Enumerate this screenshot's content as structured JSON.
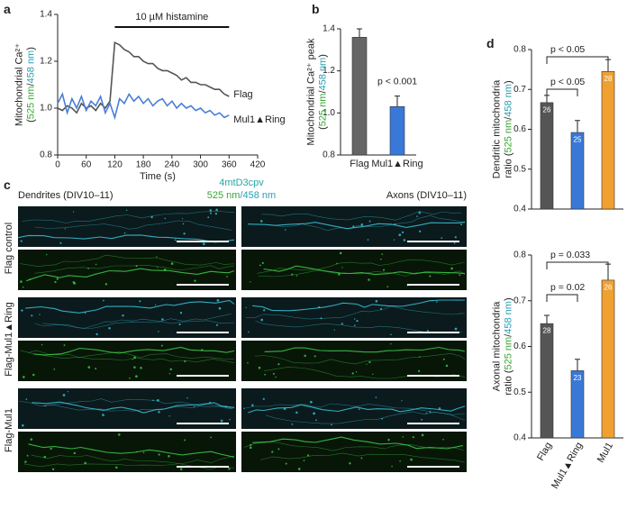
{
  "panel_labels": [
    "a",
    "b",
    "c",
    "d"
  ],
  "chart_data": [
    {
      "type": "line",
      "x_label": "Time (s)",
      "y_label": [
        [
          {
            "text": "Mitochondrial Ca²⁺",
            "color": "#222222"
          }
        ],
        [
          {
            "text": "(",
            "color": "#222222"
          },
          {
            "text": "525 nm",
            "color": "#3aa635"
          },
          {
            "text": "/",
            "color": "#222222"
          },
          {
            "text": "458 nm",
            "color": "#2a9fb5"
          },
          {
            "text": ")",
            "color": "#222222"
          }
        ]
      ],
      "stimulus": {
        "label": "10 µM histamine",
        "start": 120,
        "end": 360
      },
      "x": [
        0,
        10,
        20,
        30,
        40,
        50,
        60,
        70,
        80,
        90,
        100,
        110,
        120,
        130,
        140,
        150,
        160,
        170,
        180,
        190,
        200,
        210,
        220,
        230,
        240,
        250,
        260,
        270,
        280,
        290,
        300,
        310,
        320,
        330,
        340,
        350,
        360
      ],
      "series": [
        {
          "name": "Flag",
          "color": "#555555",
          "values": [
            1.0,
            0.99,
            1.01,
            1.0,
            0.98,
            1.02,
            1.0,
            1.01,
            0.99,
            1.02,
            1.0,
            1.03,
            1.28,
            1.27,
            1.25,
            1.24,
            1.22,
            1.22,
            1.2,
            1.19,
            1.19,
            1.17,
            1.16,
            1.16,
            1.15,
            1.14,
            1.12,
            1.13,
            1.11,
            1.11,
            1.1,
            1.1,
            1.09,
            1.08,
            1.08,
            1.06,
            1.05
          ]
        },
        {
          "name": "Mul1▲Ring",
          "color": "#4a7fd6",
          "values": [
            1.02,
            1.06,
            0.98,
            1.04,
            1.0,
            1.05,
            0.99,
            1.03,
            1.01,
            1.05,
            0.98,
            1.02,
            0.96,
            1.04,
            1.02,
            1.06,
            1.03,
            1.05,
            1.02,
            1.04,
            1.01,
            1.03,
            1.04,
            1.01,
            1.03,
            1.0,
            1.02,
            1.0,
            1.01,
            0.99,
            1.0,
            0.98,
            0.99,
            0.97,
            0.98,
            0.96,
            0.97
          ]
        }
      ],
      "xlim": [
        0,
        420
      ],
      "xticks": [
        0,
        60,
        120,
        180,
        240,
        300,
        360,
        420
      ],
      "ylim": [
        0.8,
        1.4
      ],
      "yticks": [
        0.8,
        {
          "value": 1,
          "label": "1.0"
        },
        1.2,
        1.4
      ]
    },
    {
      "type": "bar",
      "y_label": [
        [
          {
            "text": "Mitochondrial Ca²⁺ peak",
            "color": "#222222"
          }
        ],
        [
          {
            "text": "(",
            "color": "#222222"
          },
          {
            "text": "525 nm",
            "color": "#3aa635"
          },
          {
            "text": "/",
            "color": "#222222"
          },
          {
            "text": "458 nm",
            "color": "#2a9fb5"
          },
          {
            "text": ")",
            "color": "#222222"
          }
        ]
      ],
      "categories": [
        "Flag",
        "Mul1▲Ring"
      ],
      "values": [
        1.36,
        1.03
      ],
      "errors": [
        0.04,
        0.05
      ],
      "colors": [
        "#666666",
        "#3a78d8"
      ],
      "annotations": [
        "p < 0.001"
      ],
      "ylim": [
        0.8,
        1.4
      ],
      "yticks": [
        0.8,
        {
          "value": 1,
          "label": "1.0"
        },
        1.2,
        1.4
      ]
    },
    {
      "type": "bar",
      "y_label": [
        [
          {
            "text": "Dendritic mitochondria",
            "color": "#222222"
          }
        ],
        [
          {
            "text": "ratio (",
            "color": "#222222"
          },
          {
            "text": "525 nm",
            "color": "#3aa635"
          },
          {
            "text": "/",
            "color": "#222222"
          },
          {
            "text": "458 nm",
            "color": "#2a9fb5"
          },
          {
            "text": ")",
            "color": "#222222"
          }
        ]
      ],
      "values": [
        0.667,
        0.592,
        0.745
      ],
      "errors": [
        0.018,
        0.03,
        0.03
      ],
      "n": [
        26,
        25,
        28
      ],
      "colors": [
        "#555555",
        "#3a78d8",
        "#f0a030"
      ],
      "annotations": [
        "p < 0.05",
        "p < 0.05"
      ],
      "ylim": [
        0.4,
        0.8
      ],
      "yticks": [
        0.4,
        0.5,
        0.6,
        0.7,
        0.8
      ]
    },
    {
      "type": "bar",
      "y_label": [
        [
          {
            "text": "Axonal mitochondria",
            "color": "#222222"
          }
        ],
        [
          {
            "text": "ratio (",
            "color": "#222222"
          },
          {
            "text": "525 nm",
            "color": "#3aa635"
          },
          {
            "text": "/",
            "color": "#222222"
          },
          {
            "text": "458 nm",
            "color": "#2a9fb5"
          },
          {
            "text": ")",
            "color": "#222222"
          }
        ]
      ],
      "categories": [
        "Flag",
        "Mul1▲Ring",
        "Mul1"
      ],
      "values": [
        0.65,
        0.547,
        0.745
      ],
      "errors": [
        0.018,
        0.025,
        0.035
      ],
      "n": [
        28,
        23,
        26
      ],
      "colors": [
        "#555555",
        "#3a78d8",
        "#f0a030"
      ],
      "annotations": [
        "p = 0.033",
        "p = 0.02"
      ],
      "ylim": [
        0.4,
        0.8
      ],
      "yticks": [
        0.4,
        0.5,
        0.6,
        0.7,
        0.8
      ]
    }
  ],
  "micrographs": {
    "title": "4mtD3cpv",
    "channels": [
      {
        "text": "525 nm",
        "color": "#3aa635"
      },
      {
        "text": "/458 nm",
        "color": "#2a9fb5"
      }
    ],
    "left": "Dendrites (DIV10–11)",
    "right": "Axons (DIV10–11)",
    "rows": [
      "Flag control",
      "Flag-Mul1▲Ring",
      "Flag-Mul1"
    ]
  }
}
